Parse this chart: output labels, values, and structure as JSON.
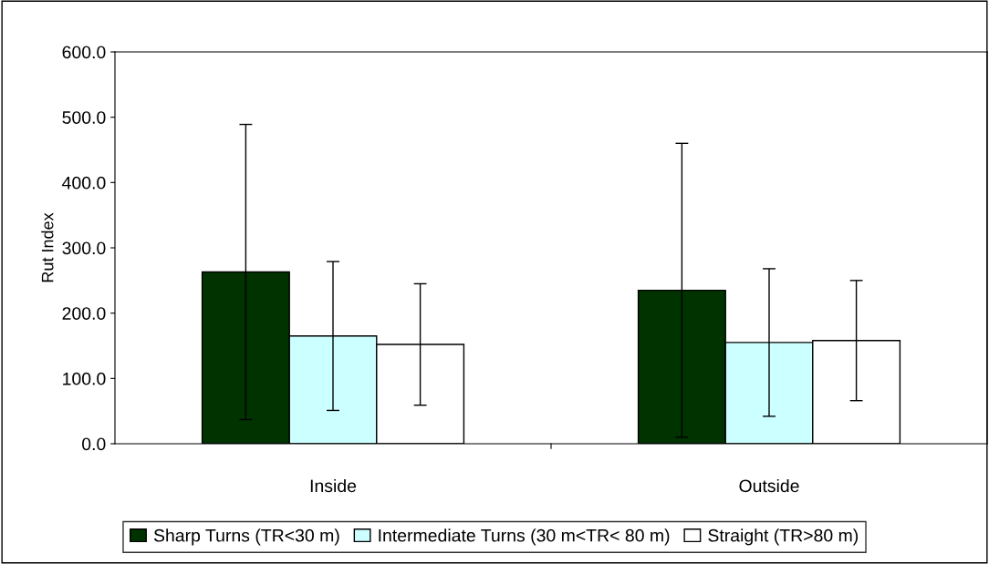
{
  "chart_data": {
    "type": "bar",
    "ylabel": "Rut Index",
    "categories": [
      "Inside",
      "Outside"
    ],
    "series": [
      {
        "name": "Sharp Turns (TR<30 m)",
        "color": "#003300",
        "values": [
          263,
          235
        ],
        "errors": [
          226,
          225
        ]
      },
      {
        "name": "Intermediate Turns (30 m<TR< 80 m)",
        "color": "#ccffff",
        "values": [
          165,
          155
        ],
        "errors": [
          114,
          113
        ]
      },
      {
        "name": "Straight (TR>80 m)",
        "color": "#ffffff",
        "values": [
          152,
          158
        ],
        "errors": [
          93,
          92
        ]
      }
    ],
    "ylim": [
      0,
      600
    ],
    "yticks": [
      {
        "value": 0,
        "label": "0.0"
      },
      {
        "value": 100,
        "label": "100.0"
      },
      {
        "value": 200,
        "label": "200.0"
      },
      {
        "value": 300,
        "label": "300.0"
      },
      {
        "value": 400,
        "label": "400.0"
      },
      {
        "value": 500,
        "label": "500.0"
      },
      {
        "value": 600,
        "label": "600.0"
      }
    ],
    "grid": false,
    "legend": "bottom"
  }
}
